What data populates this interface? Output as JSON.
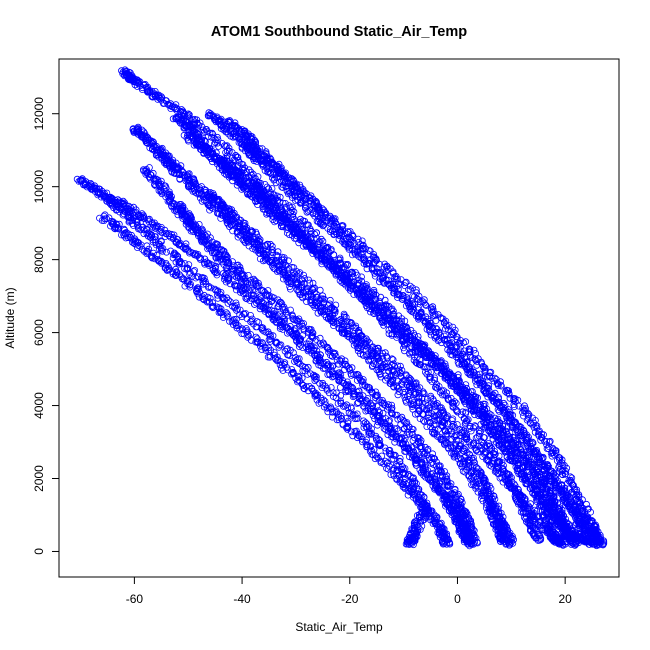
{
  "chart_data": {
    "type": "scatter",
    "title": "ATOM1 Southbound Static_Air_Temp",
    "xlabel": "Static_Air_Temp",
    "ylabel": "Altitude (m)",
    "xlim": [
      -74,
      30
    ],
    "ylim": [
      -700,
      13500
    ],
    "xticks": [
      "-60",
      "-40",
      "-20",
      "0",
      "20"
    ],
    "xtick_values": [
      -60,
      -40,
      -20,
      0,
      20
    ],
    "yticks": [
      "0",
      "2000",
      "4000",
      "6000",
      "8000",
      "10000",
      "12000"
    ],
    "ytick_values": [
      0,
      2000,
      4000,
      6000,
      8000,
      10000,
      12000
    ],
    "grid": false,
    "legend": "none",
    "point_style": "open-circle",
    "color": "#0000ff",
    "series": [
      {
        "values": [
          [
            -62,
            13150
          ],
          [
            -60,
            12900
          ],
          [
            -55,
            12400
          ],
          [
            -48,
            11700
          ],
          [
            -40,
            10600
          ],
          [
            -30,
            9200
          ],
          [
            -20,
            7700
          ],
          [
            -10,
            6200
          ],
          [
            0,
            4500
          ],
          [
            8,
            3000
          ],
          [
            14,
            1800
          ],
          [
            18,
            900
          ],
          [
            22,
            400
          ],
          [
            26,
            200
          ]
        ]
      },
      {
        "values": [
          [
            -46,
            12000
          ],
          [
            -42,
            11500
          ],
          [
            -36,
            10800
          ],
          [
            -28,
            9700
          ],
          [
            -18,
            8200
          ],
          [
            -8,
            6600
          ],
          [
            0,
            5300
          ],
          [
            8,
            4000
          ],
          [
            15,
            2600
          ],
          [
            20,
            1500
          ],
          [
            24,
            700
          ],
          [
            27,
            200
          ]
        ]
      },
      {
        "values": [
          [
            -60,
            11600
          ],
          [
            -57,
            11200
          ],
          [
            -52,
            10500
          ],
          [
            -44,
            9500
          ],
          [
            -34,
            8200
          ],
          [
            -24,
            6800
          ],
          [
            -14,
            5400
          ],
          [
            -4,
            4000
          ],
          [
            4,
            2800
          ],
          [
            11,
            1600
          ],
          [
            16,
            700
          ],
          [
            20,
            200
          ]
        ]
      },
      {
        "values": [
          [
            -70,
            10200
          ],
          [
            -66,
            9800
          ],
          [
            -62,
            9300
          ],
          [
            -56,
            8500
          ],
          [
            -48,
            7500
          ],
          [
            -38,
            6300
          ],
          [
            -28,
            5000
          ],
          [
            -18,
            3600
          ],
          [
            -10,
            2300
          ],
          [
            -6,
            1200
          ],
          [
            -8,
            500
          ],
          [
            -9,
            200
          ]
        ]
      },
      {
        "values": [
          [
            -66,
            9200
          ],
          [
            -60,
            8500
          ],
          [
            -52,
            7600
          ],
          [
            -44,
            6600
          ],
          [
            -36,
            5600
          ],
          [
            -28,
            4500
          ],
          [
            -20,
            3400
          ],
          [
            -12,
            2200
          ],
          [
            -6,
            1200
          ],
          [
            -3,
            600
          ],
          [
            -2,
            200
          ]
        ]
      },
      {
        "values": [
          [
            -56,
            11000
          ],
          [
            -52,
            10400
          ],
          [
            -46,
            9500
          ],
          [
            -38,
            8400
          ],
          [
            -30,
            7200
          ],
          [
            -20,
            5900
          ],
          [
            -12,
            4600
          ],
          [
            -4,
            3300
          ],
          [
            2,
            2200
          ],
          [
            6,
            1200
          ],
          [
            8,
            600
          ],
          [
            9,
            200
          ]
        ]
      },
      {
        "values": [
          [
            -44,
            10800
          ],
          [
            -40,
            10300
          ],
          [
            -34,
            9400
          ],
          [
            -26,
            8200
          ],
          [
            -18,
            7000
          ],
          [
            -10,
            5700
          ],
          [
            -2,
            4300
          ],
          [
            5,
            3000
          ],
          [
            10,
            1900
          ],
          [
            13,
            1000
          ],
          [
            15,
            300
          ]
        ]
      },
      {
        "values": [
          [
            -52,
            9500
          ],
          [
            -48,
            8800
          ],
          [
            -42,
            7900
          ],
          [
            -34,
            6900
          ],
          [
            -26,
            5800
          ],
          [
            -18,
            4700
          ],
          [
            -10,
            3500
          ],
          [
            -4,
            2400
          ],
          [
            0,
            1400
          ],
          [
            2,
            700
          ],
          [
            3,
            200
          ]
        ]
      },
      {
        "values": [
          [
            -58,
            10500
          ],
          [
            -54,
            9800
          ],
          [
            -50,
            9000
          ],
          [
            -44,
            8000
          ],
          [
            -36,
            6800
          ],
          [
            -26,
            5400
          ],
          [
            -16,
            4000
          ],
          [
            -8,
            2700
          ],
          [
            -2,
            1500
          ],
          [
            1,
            700
          ],
          [
            2,
            200
          ]
        ]
      },
      {
        "values": [
          [
            -50,
            11400
          ],
          [
            -46,
            10900
          ],
          [
            -40,
            10000
          ],
          [
            -32,
            8900
          ],
          [
            -22,
            7600
          ],
          [
            -12,
            6200
          ],
          [
            -2,
            4800
          ],
          [
            6,
            3400
          ],
          [
            12,
            2200
          ],
          [
            16,
            1200
          ],
          [
            18,
            400
          ],
          [
            19,
            200
          ]
        ]
      },
      {
        "values": [
          [
            -64,
            9700
          ],
          [
            -58,
            9100
          ],
          [
            -50,
            8300
          ],
          [
            -42,
            7400
          ],
          [
            -34,
            6400
          ],
          [
            -26,
            5300
          ],
          [
            -18,
            4100
          ],
          [
            -10,
            2900
          ],
          [
            -4,
            1800
          ],
          [
            0,
            900
          ],
          [
            2,
            300
          ]
        ]
      },
      {
        "values": [
          [
            -40,
            11200
          ],
          [
            -36,
            10600
          ],
          [
            -30,
            9700
          ],
          [
            -22,
            8600
          ],
          [
            -12,
            7200
          ],
          [
            -2,
            5800
          ],
          [
            6,
            4400
          ],
          [
            12,
            3200
          ],
          [
            18,
            2000
          ],
          [
            22,
            1000
          ],
          [
            24,
            300
          ]
        ]
      },
      {
        "values": [
          [
            -52,
            11900
          ],
          [
            -49,
            11500
          ],
          [
            -45,
            10800
          ],
          [
            -38,
            9800
          ],
          [
            -28,
            8500
          ],
          [
            -18,
            7100
          ],
          [
            -8,
            5700
          ],
          [
            2,
            4300
          ],
          [
            10,
            3000
          ],
          [
            16,
            1900
          ],
          [
            19,
            900
          ],
          [
            21,
            300
          ]
        ]
      },
      {
        "values": [
          [
            -46,
            9800
          ],
          [
            -42,
            9100
          ],
          [
            -36,
            8200
          ],
          [
            -28,
            7100
          ],
          [
            -20,
            6000
          ],
          [
            -12,
            4900
          ],
          [
            -4,
            3700
          ],
          [
            2,
            2600
          ],
          [
            6,
            1600
          ],
          [
            8,
            800
          ],
          [
            10,
            250
          ]
        ]
      },
      {
        "values": [
          [
            -38,
            10100
          ],
          [
            -34,
            9500
          ],
          [
            -28,
            8600
          ],
          [
            -20,
            7500
          ],
          [
            -10,
            6100
          ],
          [
            0,
            4700
          ],
          [
            8,
            3400
          ],
          [
            14,
            2300
          ],
          [
            18,
            1300
          ],
          [
            21,
            500
          ],
          [
            22,
            200
          ]
        ]
      },
      {
        "values": [
          [
            -42,
            11800
          ],
          [
            -38,
            11200
          ],
          [
            -32,
            10300
          ],
          [
            -24,
            9200
          ],
          [
            -14,
            7900
          ],
          [
            -4,
            6500
          ],
          [
            4,
            5200
          ],
          [
            12,
            3900
          ],
          [
            18,
            2700
          ],
          [
            22,
            1600
          ],
          [
            25,
            700
          ],
          [
            26,
            200
          ]
        ]
      }
    ]
  }
}
